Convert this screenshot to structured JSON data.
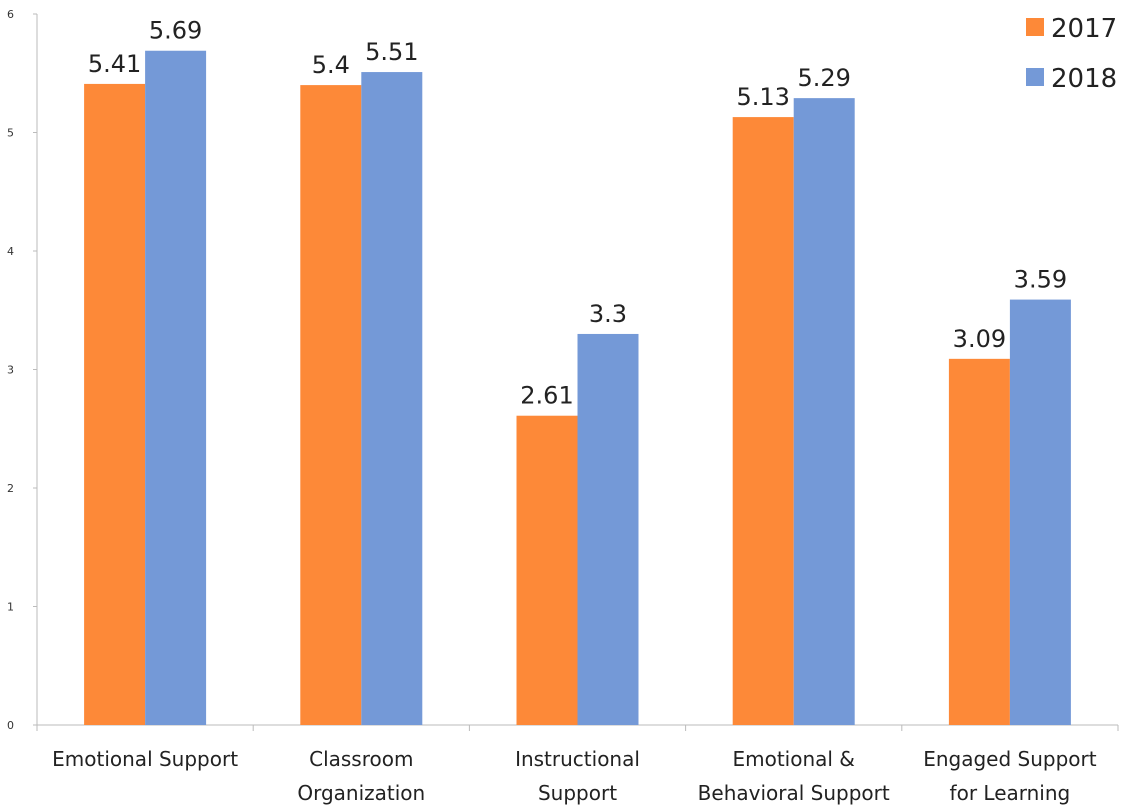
{
  "chart_data": {
    "type": "bar",
    "categories": [
      [
        "Emotional Support"
      ],
      [
        "Classroom",
        "Organization"
      ],
      [
        "Instructional",
        "Support"
      ],
      [
        "Emotional &",
        "Behavioral Support"
      ],
      [
        "Engaged Support",
        "for Learning"
      ]
    ],
    "series": [
      {
        "name": "2017",
        "values": [
          5.41,
          5.4,
          2.61,
          5.13,
          3.09
        ],
        "color": "#FD8938"
      },
      {
        "name": "2018",
        "values": [
          5.69,
          5.51,
          3.3,
          5.29,
          3.59
        ],
        "color": "#7499D7"
      }
    ],
    "data_labels": [
      [
        "5.41",
        "5.4",
        "2.61",
        "5.13",
        "3.09"
      ],
      [
        "5.69",
        "5.51",
        "3.3",
        "5.29",
        "3.59"
      ]
    ],
    "ylim": [
      0,
      6
    ],
    "yticks": [
      "0",
      "1",
      "2",
      "3",
      "4",
      "5",
      "6"
    ],
    "title": "",
    "xlabel": "",
    "ylabel": "",
    "grid": false,
    "legend_position": "top-right",
    "axis_color": "#bbbbbb"
  }
}
